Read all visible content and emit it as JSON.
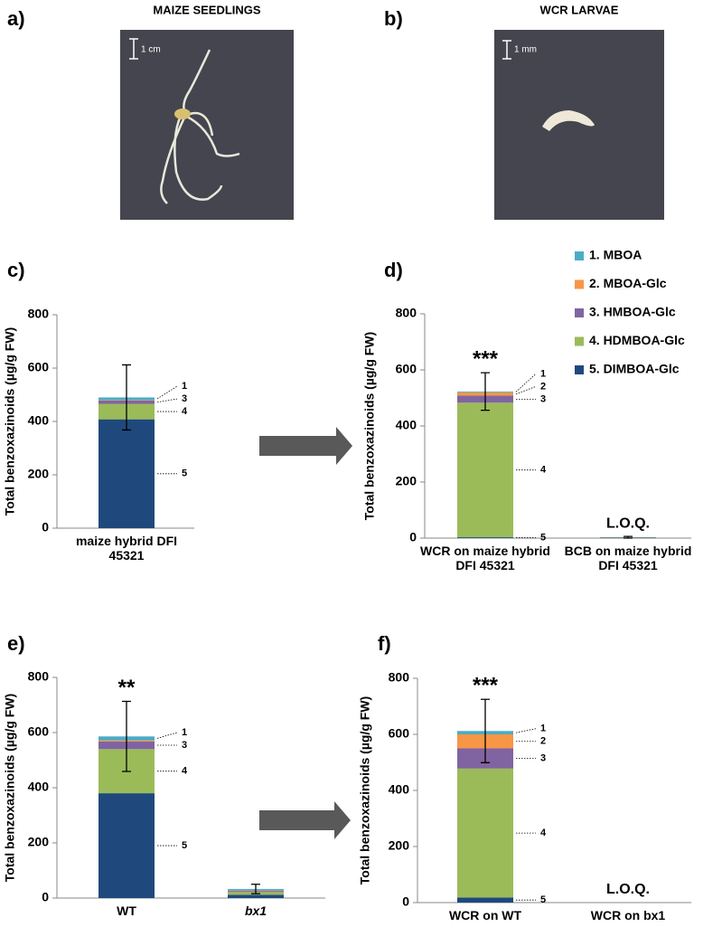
{
  "panels": {
    "a": {
      "label": "a)",
      "title": "MAIZE SEEDLINGS",
      "scale": "1 cm"
    },
    "b": {
      "label": "b)",
      "title": "WCR LARVAE",
      "scale": "1 mm"
    },
    "c": {
      "label": "c)"
    },
    "d": {
      "label": "d)"
    },
    "e": {
      "label": "e)"
    },
    "f": {
      "label": "f)"
    }
  },
  "chart_data": [
    {
      "type": "bar",
      "stacked": true,
      "ylabel": "Total benzoxazinoids (µg/g FW)",
      "categories": [
        "maize hybrid DFI 45321"
      ],
      "series": [
        {
          "name": "1. MBOA",
          "color": "#4bacc6",
          "values": [
            10
          ]
        },
        {
          "name": "2. MBOA-Glc",
          "color": "#f79646",
          "values": [
            2
          ]
        },
        {
          "name": "3. HMBOA-Glc",
          "color": "#8064a2",
          "values": [
            12
          ]
        },
        {
          "name": "4. HDMBOA-Glc",
          "color": "#9bbb59",
          "values": [
            58
          ]
        },
        {
          "name": "5. DIMBOA-Glc",
          "color": "#1f497d",
          "values": [
            408
          ]
        }
      ],
      "errors": [
        122
      ],
      "segment_labels": [
        "1",
        "3",
        "4",
        "5"
      ],
      "ylim": [
        0,
        800
      ],
      "yticks": [
        0,
        200,
        400,
        600,
        800
      ]
    },
    {
      "type": "bar",
      "stacked": true,
      "ylabel": "Total benzoxazinoids (µg/g FW)",
      "categories": [
        "WCR on maize hybrid DFI 45321",
        "BCB on maize hybrid DFI 45321"
      ],
      "series": [
        {
          "name": "1. MBOA",
          "color": "#4bacc6",
          "values": [
            3,
            0
          ]
        },
        {
          "name": "2. MBOA-Glc",
          "color": "#f79646",
          "values": [
            12,
            0
          ]
        },
        {
          "name": "3. HMBOA-Glc",
          "color": "#8064a2",
          "values": [
            25,
            0
          ]
        },
        {
          "name": "4. HDMBOA-Glc",
          "color": "#9bbb59",
          "values": [
            480,
            1
          ]
        },
        {
          "name": "5. DIMBOA-Glc",
          "color": "#1f497d",
          "values": [
            3,
            2
          ]
        }
      ],
      "errors": [
        67,
        3
      ],
      "category_labels": [
        "***",
        "L.O.Q."
      ],
      "segment_labels": [
        "1",
        "2",
        "3",
        "4",
        "5"
      ],
      "ylim": [
        0,
        800
      ],
      "yticks": [
        0,
        200,
        400,
        600,
        800
      ]
    },
    {
      "type": "bar",
      "stacked": true,
      "ylabel": "Total benzoxazinoids (µg/g FW)",
      "categories": [
        "WT",
        "bx1"
      ],
      "series": [
        {
          "name": "1. MBOA",
          "color": "#4bacc6",
          "values": [
            14,
            5
          ]
        },
        {
          "name": "2. MBOA-Glc",
          "color": "#f79646",
          "values": [
            4,
            2
          ]
        },
        {
          "name": "3. HMBOA-Glc",
          "color": "#8064a2",
          "values": [
            28,
            4
          ]
        },
        {
          "name": "4. HDMBOA-Glc",
          "color": "#9bbb59",
          "values": [
            160,
            10
          ]
        },
        {
          "name": "5. DIMBOA-Glc",
          "color": "#1f497d",
          "values": [
            380,
            12
          ]
        }
      ],
      "errors": [
        127,
        17
      ],
      "category_labels": [
        "**",
        null
      ],
      "segment_labels": [
        "1",
        "3",
        "4",
        "5"
      ],
      "ylim": [
        0,
        800
      ],
      "yticks": [
        0,
        200,
        400,
        600,
        800
      ]
    },
    {
      "type": "bar",
      "stacked": true,
      "ylabel": "Total benzoxazinoids (µg/g FW)",
      "categories": [
        "WCR on WT",
        "WCR on bx1"
      ],
      "series": [
        {
          "name": "1. MBOA",
          "color": "#4bacc6",
          "values": [
            12,
            0
          ]
        },
        {
          "name": "2. MBOA-Glc",
          "color": "#f79646",
          "values": [
            50,
            0
          ]
        },
        {
          "name": "3. HMBOA-Glc",
          "color": "#8064a2",
          "values": [
            72,
            0
          ]
        },
        {
          "name": "4. HDMBOA-Glc",
          "color": "#9bbb59",
          "values": [
            460,
            0
          ]
        },
        {
          "name": "5. DIMBOA-Glc",
          "color": "#1f497d",
          "values": [
            18,
            0
          ]
        }
      ],
      "errors": [
        113,
        null
      ],
      "category_labels": [
        "***",
        "L.O.Q."
      ],
      "segment_labels": [
        "1",
        "2",
        "3",
        "4",
        "5"
      ],
      "ylim": [
        0,
        800
      ],
      "yticks": [
        0,
        200,
        400,
        600,
        800
      ]
    }
  ]
}
